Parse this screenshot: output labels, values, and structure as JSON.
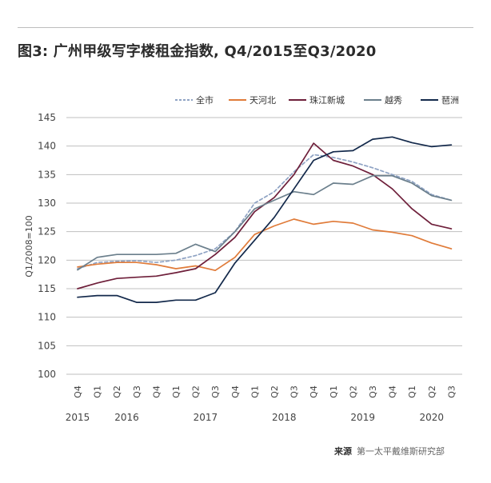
{
  "title": "图3: 广州甲级写字楼租金指数, Q4/2015至Q3/2020",
  "source_label": "来源",
  "source_text": "第一太平戴维斯研究部",
  "colors": {
    "全市": "#8fa3c4",
    "天河北": "#e07b39",
    "珠江新城": "#6e1f3a",
    "越秀": "#6b7f8c",
    "琶洲": "#13294b",
    "grid": "#bfbfbf"
  },
  "chart_data": {
    "type": "line",
    "title": "图3: 广州甲级写字楼租金指数, Q4/2015至Q3/2020",
    "ylabel": "Q1/2008=100",
    "xlabel": "",
    "ylim": [
      100,
      145
    ],
    "yticks": [
      100,
      105,
      110,
      115,
      120,
      125,
      130,
      135,
      140,
      145
    ],
    "grid": true,
    "legend": "top-right",
    "x": [
      "Q4",
      "Q1",
      "Q2",
      "Q3",
      "Q4",
      "Q1",
      "Q2",
      "Q3",
      "Q4",
      "Q1",
      "Q2",
      "Q3",
      "Q4",
      "Q1",
      "Q2",
      "Q3",
      "Q4",
      "Q1",
      "Q2",
      "Q3"
    ],
    "years": [
      {
        "label": "2015",
        "index": 0
      },
      {
        "label": "2016",
        "index": 2.5
      },
      {
        "label": "2017",
        "index": 6.5
      },
      {
        "label": "2018",
        "index": 10.5
      },
      {
        "label": "2019",
        "index": 14.5
      },
      {
        "label": "2020",
        "index": 18
      }
    ],
    "series": [
      {
        "name": "全市",
        "style": "dashed",
        "values": [
          118.5,
          119.6,
          119.8,
          119.9,
          119.6,
          120.0,
          120.8,
          122.0,
          125.0,
          130.0,
          132.0,
          135.5,
          138.5,
          138.0,
          137.2,
          136.2,
          135.0,
          133.8,
          131.5,
          130.5
        ]
      },
      {
        "name": "天河北",
        "style": "solid",
        "values": [
          118.8,
          119.3,
          119.6,
          119.6,
          119.2,
          118.5,
          119.0,
          118.2,
          120.5,
          124.5,
          126.0,
          127.2,
          126.3,
          126.8,
          126.5,
          125.3,
          124.9,
          124.3,
          123.0,
          122.0
        ]
      },
      {
        "name": "珠江新城",
        "style": "solid",
        "values": [
          115.0,
          116.0,
          116.8,
          117.0,
          117.2,
          117.8,
          118.5,
          121.0,
          124.0,
          128.5,
          131.0,
          135.0,
          140.5,
          137.5,
          136.5,
          135.0,
          132.5,
          129.0,
          126.3,
          125.5
        ]
      },
      {
        "name": "越秀",
        "style": "solid",
        "values": [
          118.3,
          120.5,
          121.0,
          121.0,
          121.0,
          121.2,
          122.8,
          121.5,
          125.0,
          129.0,
          130.5,
          132.0,
          131.5,
          133.5,
          133.3,
          134.8,
          134.8,
          133.5,
          131.3,
          130.5
        ]
      },
      {
        "name": "琶洲",
        "style": "solid",
        "values": [
          113.5,
          113.8,
          113.8,
          112.6,
          112.6,
          113.0,
          113.0,
          114.3,
          119.5,
          123.5,
          127.5,
          132.5,
          137.5,
          139.0,
          139.2,
          141.2,
          141.6,
          140.6,
          139.9,
          140.2
        ]
      }
    ]
  }
}
